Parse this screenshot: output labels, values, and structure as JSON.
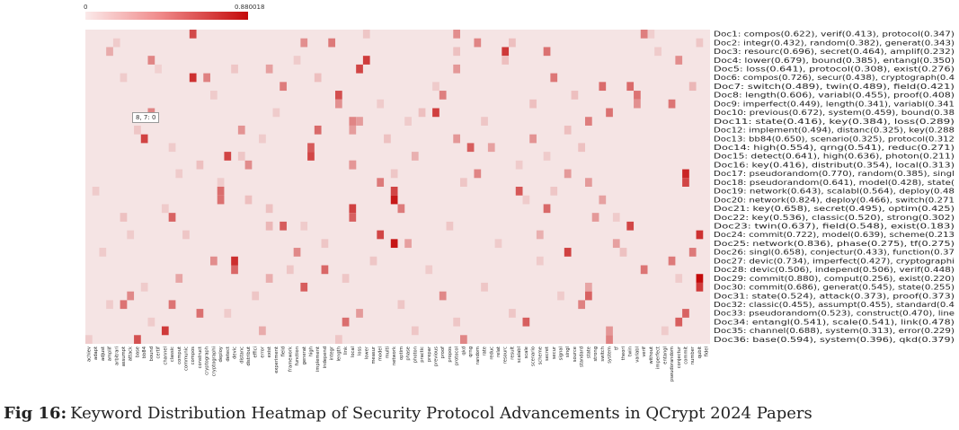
{
  "chart_data": {
    "type": "heatmap",
    "title": "",
    "xlabel": "",
    "ylabel": "",
    "color_scale": {
      "min": 0,
      "max": 0.880018,
      "min_label": "0",
      "max_label": "0.880018",
      "low_color": "#f5e4e4",
      "high_color": "#c40a0a"
    },
    "rows": [
      "Doc1: compos(0.622), verif(0.413), protocol(0.347)",
      "Doc2: integr(0.432), random(0.382), generat(0.343)",
      "Doc3: resourc(0.696), secret(0.464), amplif(0.232)",
      "Doc4: lower(0.679), bound(0.385), entangl(0.350)",
      "Doc5: loss(0.641), protocol(0.308), exist(0.276)",
      "Doc6: compos(0.726), secur(0.438), cryptograph(0.4",
      "Doc7: switch(0.489), twin(0.489), field(0.421)",
      "Doc8: length(0.606), variabl(0.455), proof(0.408)",
      "Doc9: imperfect(0.449), length(0.341), variabl(0.341",
      "Doc10: previous(0.672), system(0.459), bound(0.38",
      "Doc11: state(0.416), key(0.384), loss(0.289)",
      "Doc12: implement(0.494), distanc(0.325), key(0.288",
      "Doc13: bb84(0.650), scenario(0.325), protocol(0.312",
      "Doc14: high(0.554), qrng(0.541), reduc(0.271)",
      "Doc15: detect(0.641), high(0.636), photon(0.211)",
      "Doc16: key(0.416), distribut(0.354), local(0.313)",
      "Doc17: pseudorandom(0.770), random(0.385), singl",
      "Doc18: pseudorandom(0.641), model(0.428), state(",
      "Doc19: network(0.643), scalabl(0.564), deploy(0.48",
      "Doc20: network(0.824), deploy(0.466), switch(0.271",
      "Doc21: key(0.658), secret(0.495), optim(0.425)",
      "Doc22: key(0.536), classic(0.520), strong(0.302)",
      "Doc23: twin(0.637), field(0.548), exist(0.183)",
      "Doc24: commit(0.722), model(0.639), scheme(0.213",
      "Doc25: network(0.836), phase(0.275), tf(0.275)",
      "Doc26: singl(0.658), conjectur(0.433), function(0.37",
      "Doc27: devic(0.734), imperfect(0.427), cryptographi",
      "Doc28: devic(0.506), independ(0.506), verif(0.448)",
      "Doc29: commit(0.880), comput(0.256), exist(0.220)",
      "Doc30: commit(0.686), generat(0.545), state(0.255)",
      "Doc31: state(0.524), attack(0.373), proof(0.373)",
      "Doc32: classic(0.455), assumpt(0.455), standard(0.4",
      "Doc33: pseudorandom(0.523), construct(0.470), line",
      "Doc34: entangl(0.541), scale(0.541), link(0.478)",
      "Doc35: channel(0.688), system(0.313), error(0.229)",
      "Doc36: base(0.594), system(0.396), qkd(0.379)"
    ],
    "columns": [
      "achiev",
      "adapt",
      "adjust",
      "amplif",
      "arbitrari",
      "assumpt",
      "attack",
      "base",
      "bb84",
      "bound",
      "certif",
      "channel",
      "classic",
      "comput",
      "communic",
      "compos",
      "construct",
      "cryptograph",
      "cryptographi",
      "deploy",
      "detect",
      "devic",
      "distanc",
      "distribut",
      "effici",
      "error",
      "exist",
      "experiment",
      "field",
      "framework",
      "function",
      "generat",
      "high",
      "implement",
      "independ",
      "integr",
      "length",
      "link",
      "local",
      "loss",
      "lower",
      "measur",
      "model",
      "multi",
      "network",
      "optim",
      "phase",
      "photon",
      "practic",
      "prepar",
      "previous",
      "proof",
      "propos",
      "protocol",
      "qkd",
      "qrng",
      "random",
      "rate",
      "reduc",
      "relat",
      "resourc",
      "result",
      "scalabl",
      "scale",
      "scenario",
      "scheme",
      "secret",
      "secur",
      "signal",
      "singl",
      "source",
      "standard",
      "state",
      "strong",
      "switch",
      "system",
      "tf",
      "theori",
      "twin",
      "variabl",
      "verif",
      "without",
      "imperfect",
      "entangl",
      "pseudorandom",
      "conjectur",
      "commit",
      "number",
      "qubit",
      "fidel"
    ],
    "tooltip": "8, 7: 0",
    "cells": [
      [
        1,
        15,
        0.622
      ],
      [
        1,
        80,
        0.413
      ],
      [
        1,
        53,
        0.347
      ],
      [
        1,
        40,
        0.12
      ],
      [
        1,
        81,
        0.09
      ],
      [
        2,
        35,
        0.432
      ],
      [
        2,
        56,
        0.382
      ],
      [
        2,
        31,
        0.343
      ],
      [
        2,
        61,
        0.15
      ],
      [
        2,
        88,
        0.12
      ],
      [
        2,
        4,
        0.1
      ],
      [
        3,
        60,
        0.696
      ],
      [
        3,
        66,
        0.464
      ],
      [
        3,
        3,
        0.232
      ],
      [
        3,
        53,
        0.14
      ],
      [
        3,
        82,
        0.1
      ],
      [
        4,
        40,
        0.679
      ],
      [
        4,
        9,
        0.385
      ],
      [
        4,
        85,
        0.35
      ],
      [
        4,
        60,
        0.15
      ],
      [
        4,
        30,
        0.1
      ],
      [
        5,
        39,
        0.641
      ],
      [
        5,
        53,
        0.308
      ],
      [
        5,
        26,
        0.276
      ],
      [
        5,
        21,
        0.12
      ],
      [
        5,
        10,
        0.08
      ],
      [
        6,
        15,
        0.726
      ],
      [
        6,
        67,
        0.438
      ],
      [
        6,
        17,
        0.4
      ],
      [
        6,
        33,
        0.15
      ],
      [
        6,
        5,
        0.1
      ],
      [
        7,
        74,
        0.489
      ],
      [
        7,
        78,
        0.489
      ],
      [
        7,
        28,
        0.421
      ],
      [
        7,
        87,
        0.18
      ],
      [
        7,
        50,
        0.1
      ],
      [
        8,
        36,
        0.606
      ],
      [
        8,
        79,
        0.455
      ],
      [
        8,
        51,
        0.408
      ],
      [
        8,
        70,
        0.15
      ],
      [
        8,
        18,
        0.1
      ],
      [
        9,
        84,
        0.449
      ],
      [
        9,
        36,
        0.341
      ],
      [
        9,
        79,
        0.341
      ],
      [
        9,
        64,
        0.15
      ],
      [
        9,
        42,
        0.1
      ],
      [
        10,
        50,
        0.672
      ],
      [
        10,
        75,
        0.459
      ],
      [
        10,
        9,
        0.38
      ],
      [
        10,
        48,
        0.15
      ],
      [
        10,
        27,
        0.1
      ],
      [
        11,
        72,
        0.416
      ],
      [
        11,
        38,
        0.384
      ],
      [
        11,
        39,
        0.289
      ],
      [
        11,
        57,
        0.12
      ],
      [
        11,
        46,
        0.1
      ],
      [
        12,
        33,
        0.494
      ],
      [
        12,
        22,
        0.325
      ],
      [
        12,
        38,
        0.288
      ],
      [
        12,
        69,
        0.15
      ],
      [
        12,
        7,
        0.12
      ],
      [
        13,
        8,
        0.65
      ],
      [
        13,
        64,
        0.325
      ],
      [
        13,
        53,
        0.312
      ],
      [
        13,
        43,
        0.14
      ],
      [
        13,
        25,
        0.1
      ],
      [
        14,
        32,
        0.554
      ],
      [
        14,
        55,
        0.541
      ],
      [
        14,
        58,
        0.271
      ],
      [
        14,
        71,
        0.14
      ],
      [
        14,
        12,
        0.1
      ],
      [
        15,
        20,
        0.641
      ],
      [
        15,
        32,
        0.636
      ],
      [
        15,
        47,
        0.211
      ],
      [
        15,
        22,
        0.12
      ],
      [
        15,
        66,
        0.1
      ],
      [
        16,
        38,
        0.416
      ],
      [
        16,
        23,
        0.354
      ],
      [
        16,
        38,
        0.313
      ],
      [
        16,
        16,
        0.15
      ],
      [
        16,
        62,
        0.1
      ],
      [
        17,
        86,
        0.77
      ],
      [
        17,
        56,
        0.385
      ],
      [
        17,
        69,
        0.3
      ],
      [
        17,
        44,
        0.12
      ],
      [
        17,
        13,
        0.1
      ],
      [
        18,
        86,
        0.641
      ],
      [
        18,
        42,
        0.428
      ],
      [
        18,
        72,
        0.3
      ],
      [
        18,
        54,
        0.12
      ],
      [
        18,
        19,
        0.1
      ],
      [
        19,
        44,
        0.643
      ],
      [
        19,
        62,
        0.564
      ],
      [
        19,
        19,
        0.48
      ],
      [
        19,
        67,
        0.12
      ],
      [
        19,
        1,
        0.1
      ],
      [
        20,
        44,
        0.824
      ],
      [
        20,
        19,
        0.466
      ],
      [
        20,
        74,
        0.271
      ],
      [
        20,
        23,
        0.15
      ],
      [
        20,
        63,
        0.1
      ],
      [
        21,
        38,
        0.658
      ],
      [
        21,
        66,
        0.495
      ],
      [
        21,
        45,
        0.425
      ],
      [
        21,
        26,
        0.14
      ],
      [
        21,
        11,
        0.1
      ],
      [
        22,
        38,
        0.536
      ],
      [
        22,
        12,
        0.52
      ],
      [
        22,
        73,
        0.302
      ],
      [
        22,
        5,
        0.14
      ],
      [
        22,
        76,
        0.1
      ],
      [
        23,
        78,
        0.637
      ],
      [
        23,
        28,
        0.548
      ],
      [
        23,
        26,
        0.183
      ],
      [
        23,
        52,
        0.12
      ],
      [
        23,
        31,
        0.1
      ],
      [
        24,
        88,
        0.722
      ],
      [
        24,
        42,
        0.639
      ],
      [
        24,
        65,
        0.213
      ],
      [
        24,
        14,
        0.12
      ],
      [
        24,
        6,
        0.1
      ],
      [
        25,
        44,
        0.836
      ],
      [
        25,
        46,
        0.275
      ],
      [
        25,
        76,
        0.275
      ],
      [
        25,
        34,
        0.12
      ],
      [
        25,
        59,
        0.1
      ],
      [
        26,
        69,
        0.658
      ],
      [
        26,
        87,
        0.433
      ],
      [
        26,
        30,
        0.37
      ],
      [
        26,
        77,
        0.14
      ],
      [
        26,
        2,
        0.1
      ],
      [
        27,
        21,
        0.734
      ],
      [
        27,
        84,
        0.427
      ],
      [
        27,
        18,
        0.35
      ],
      [
        27,
        41,
        0.12
      ],
      [
        27,
        65,
        0.1
      ],
      [
        28,
        21,
        0.506
      ],
      [
        28,
        34,
        0.506
      ],
      [
        28,
        80,
        0.448
      ],
      [
        28,
        29,
        0.12
      ],
      [
        28,
        49,
        0.1
      ],
      [
        29,
        88,
        0.88
      ],
      [
        29,
        13,
        0.256
      ],
      [
        29,
        26,
        0.22
      ],
      [
        29,
        37,
        0.12
      ],
      [
        29,
        85,
        0.1
      ],
      [
        30,
        88,
        0.686
      ],
      [
        30,
        31,
        0.545
      ],
      [
        30,
        72,
        0.255
      ],
      [
        30,
        57,
        0.12
      ],
      [
        30,
        8,
        0.1
      ],
      [
        31,
        72,
        0.524
      ],
      [
        31,
        6,
        0.373
      ],
      [
        31,
        51,
        0.373
      ],
      [
        31,
        24,
        0.12
      ],
      [
        31,
        68,
        0.1
      ],
      [
        32,
        12,
        0.455
      ],
      [
        32,
        5,
        0.455
      ],
      [
        32,
        71,
        0.4
      ],
      [
        32,
        45,
        0.12
      ],
      [
        32,
        3,
        0.1
      ],
      [
        33,
        86,
        0.523
      ],
      [
        33,
        16,
        0.47
      ],
      [
        33,
        39,
        0.3
      ],
      [
        33,
        61,
        0.12
      ],
      [
        33,
        20,
        0.1
      ],
      [
        34,
        85,
        0.541
      ],
      [
        34,
        63,
        0.541
      ],
      [
        34,
        37,
        0.478
      ],
      [
        34,
        53,
        0.12
      ],
      [
        34,
        9,
        0.1
      ],
      [
        35,
        11,
        0.688
      ],
      [
        35,
        75,
        0.313
      ],
      [
        35,
        25,
        0.229
      ],
      [
        35,
        47,
        0.12
      ],
      [
        35,
        83,
        0.1
      ],
      [
        36,
        7,
        0.594
      ],
      [
        36,
        75,
        0.396
      ],
      [
        36,
        54,
        0.379
      ],
      [
        36,
        36,
        0.12
      ],
      [
        36,
        0,
        0.1
      ]
    ]
  },
  "caption": {
    "lead": "Fig 16:",
    "text": "Keyword Distribution Heatmap of Security Protocol Advancements in QCrypt 2024 Papers"
  }
}
